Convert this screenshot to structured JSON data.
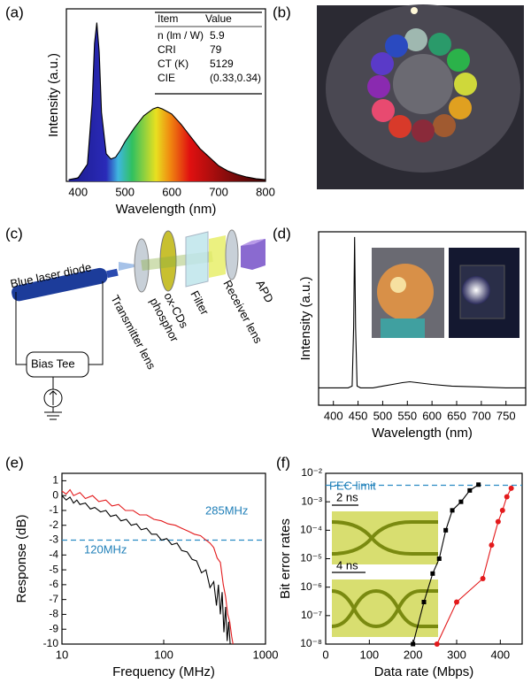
{
  "panel_labels": [
    "(a)",
    "(b)",
    "(c)",
    "(d)",
    "(e)",
    "(f)"
  ],
  "diagram": {
    "labels": [
      "Blue laser diode",
      "Bias Tee",
      "Transmitter lens",
      "ox-CDs",
      "phosphor",
      "Filter",
      "Receiver lens",
      "APD"
    ]
  },
  "chart_data": [
    {
      "type": "line",
      "xlabel": "Wavelength (nm)",
      "ylabel": "Intensity (a.u.)",
      "xlim": [
        375,
        800
      ],
      "ylim": [
        0,
        1
      ],
      "xticks": [
        400,
        500,
        600,
        700,
        800
      ],
      "area_fill": "spectrum",
      "series": [
        {
          "color": "#000000",
          "x": [
            380,
            400,
            420,
            430,
            435,
            440,
            445,
            450,
            460,
            470,
            480,
            490,
            500,
            520,
            540,
            560,
            570,
            580,
            600,
            620,
            640,
            660,
            680,
            700,
            720,
            740,
            760,
            780,
            800
          ],
          "values": [
            0.01,
            0.02,
            0.1,
            0.45,
            0.8,
            0.92,
            0.75,
            0.4,
            0.16,
            0.13,
            0.14,
            0.18,
            0.23,
            0.31,
            0.38,
            0.42,
            0.43,
            0.42,
            0.39,
            0.33,
            0.26,
            0.19,
            0.14,
            0.09,
            0.06,
            0.04,
            0.025,
            0.015,
            0.01
          ]
        }
      ],
      "table": {
        "header": [
          "Item",
          "Value"
        ],
        "rows": [
          [
            "n (lm / W)",
            "5.9"
          ],
          [
            "CRI",
            "79"
          ],
          [
            "CT (K)",
            "5129"
          ],
          [
            "CIE",
            "(0.33,0.34)"
          ]
        ]
      }
    },
    {
      "type": "line",
      "xlabel": "Wavelength (nm)",
      "ylabel": "Intensity (a.u.)",
      "xlim": [
        370,
        790
      ],
      "ylim": [
        0,
        1
      ],
      "xticks": [
        400,
        450,
        500,
        550,
        600,
        650,
        700,
        750
      ],
      "series": [
        {
          "color": "#000000",
          "x": [
            370,
            400,
            430,
            438,
            441,
            443,
            445,
            448,
            455,
            480,
            500,
            520,
            540,
            555,
            570,
            600,
            640,
            700,
            750,
            790
          ],
          "values": [
            0.1,
            0.1,
            0.1,
            0.11,
            0.45,
            0.97,
            0.45,
            0.11,
            0.1,
            0.1,
            0.11,
            0.12,
            0.13,
            0.135,
            0.13,
            0.12,
            0.11,
            0.105,
            0.1,
            0.1
          ]
        }
      ]
    },
    {
      "type": "line",
      "xlabel": "Frequency (MHz)",
      "ylabel": "Response (dB)",
      "xscale": "log",
      "xlim": [
        10,
        1000
      ],
      "ylim": [
        -10,
        1.5
      ],
      "xticks": [
        10,
        100,
        1000
      ],
      "yticks": [
        1,
        0,
        -1,
        -2,
        -3,
        -4,
        -5,
        -6,
        -7,
        -8,
        -9,
        -10
      ],
      "ref_line": -3,
      "annotations": [
        "285MHz",
        "120MHz"
      ],
      "series": [
        {
          "color": "#000000",
          "x": [
            10,
            11,
            12,
            13,
            14,
            15,
            17,
            19,
            21,
            24,
            27,
            30,
            34,
            38,
            43,
            48,
            54,
            60,
            68,
            76,
            85,
            95,
            107,
            120,
            135,
            150,
            170,
            190,
            210,
            235,
            260,
            285,
            310,
            330,
            345,
            360,
            375,
            390,
            405,
            420,
            435,
            450
          ],
          "values": [
            0.0,
            -0.3,
            -0.1,
            -0.5,
            -0.3,
            -0.6,
            -0.5,
            -0.9,
            -0.8,
            -1.1,
            -1.0,
            -1.4,
            -1.3,
            -1.7,
            -1.6,
            -2.0,
            -1.9,
            -2.3,
            -2.2,
            -2.6,
            -2.6,
            -3.0,
            -2.9,
            -3.3,
            -3.2,
            -3.7,
            -3.8,
            -4.3,
            -4.4,
            -5.2,
            -5.0,
            -6.2,
            -5.8,
            -7.4,
            -6.0,
            -8.0,
            -6.5,
            -9.2,
            -7.5,
            -9.8,
            -8.5,
            -10
          ]
        },
        {
          "color": "#e31a1c",
          "x": [
            10,
            11,
            12,
            13,
            15,
            17,
            20,
            23,
            27,
            31,
            36,
            42,
            50,
            58,
            68,
            80,
            95,
            110,
            130,
            150,
            175,
            200,
            230,
            260,
            285,
            310,
            335,
            360,
            385,
            405,
            425,
            445,
            465,
            480
          ],
          "values": [
            0.3,
            0.1,
            0.4,
            0.0,
            0.2,
            -0.2,
            0.0,
            -0.4,
            -0.3,
            -0.7,
            -0.6,
            -1.0,
            -1.0,
            -1.3,
            -1.3,
            -1.6,
            -1.7,
            -1.9,
            -2.0,
            -2.2,
            -2.4,
            -2.6,
            -2.7,
            -3.0,
            -3.2,
            -3.5,
            -4.2,
            -4.5,
            -6.0,
            -6.8,
            -8.0,
            -8.5,
            -9.5,
            -10
          ]
        }
      ]
    },
    {
      "type": "line",
      "xlabel": "Data rate (Mbps)",
      "ylabel": "Bit error rates",
      "yscale": "log",
      "xlim": [
        0,
        450
      ],
      "ylim": [
        1e-08,
        0.01
      ],
      "xticks": [
        0,
        100,
        200,
        300,
        400
      ],
      "yticks": [
        {
          "value": 1e-08,
          "label": "10⁻⁸"
        },
        {
          "value": 1e-07,
          "label": "10⁻⁷"
        },
        {
          "value": 1e-06,
          "label": "10⁻⁶"
        },
        {
          "value": 1e-05,
          "label": "10⁻⁵"
        },
        {
          "value": 0.0001,
          "label": "10⁻⁴"
        },
        {
          "value": 0.001,
          "label": "10⁻³"
        },
        {
          "value": 0.01,
          "label": "10⁻²"
        }
      ],
      "ref_line": 0.0038,
      "annotations": [
        "FEC limit",
        "2 ns",
        "4 ns"
      ],
      "series": [
        {
          "color": "#000000",
          "marker": "square",
          "x": [
            200,
            225,
            245,
            260,
            275,
            290,
            310,
            330,
            350
          ],
          "values": [
            1e-08,
            3e-07,
            3e-06,
            1e-05,
            0.0001,
            0.0005,
            0.001,
            0.0025,
            0.004
          ]
        },
        {
          "color": "#e31a1c",
          "marker": "circle",
          "x": [
            255,
            300,
            360,
            380,
            395,
            405,
            415,
            425
          ],
          "values": [
            1e-08,
            3e-07,
            2e-06,
            3e-05,
            0.0002,
            0.0005,
            0.0015,
            0.003
          ]
        }
      ]
    }
  ]
}
